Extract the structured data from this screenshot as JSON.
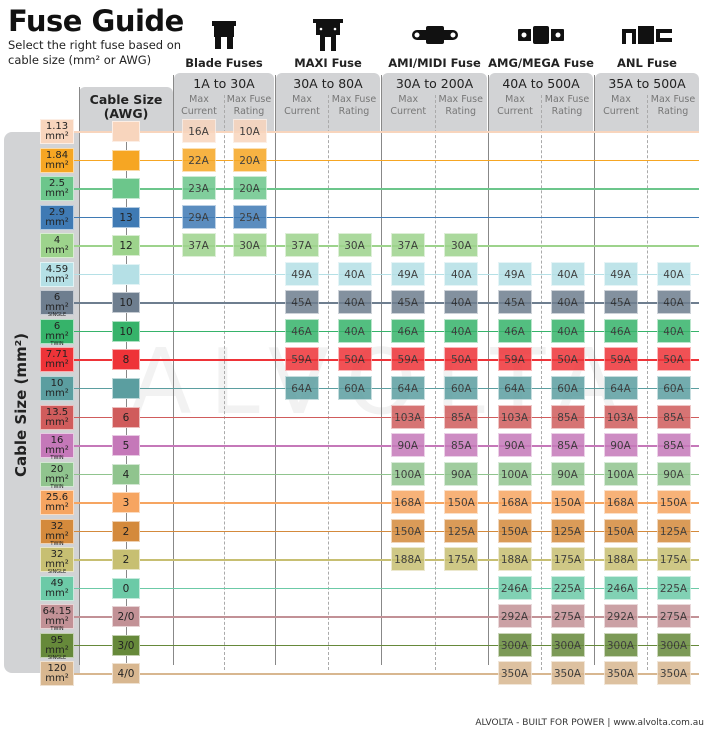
{
  "header": {
    "title": "Fuse Guide",
    "subtitle": "Select the right fuse based on cable size (mm² or AWG)"
  },
  "axis": {
    "cable_size_mm": "Cable Size (mm²)",
    "cable_size_awg": "Cable Size (AWG)"
  },
  "sub_headers": {
    "current": "Max Current",
    "rating": "Max Fuse Rating"
  },
  "fuse_types": [
    {
      "name": "Blade Fuses",
      "range": "1A to 30A",
      "icon": "blade-fuse-icon"
    },
    {
      "name": "MAXI Fuse",
      "range": "30A to 80A",
      "icon": "maxi-fuse-icon"
    },
    {
      "name": "AMI/MIDI Fuse",
      "range": "30A to 200A",
      "icon": "midi-fuse-icon"
    },
    {
      "name": "AMG/MEGA Fuse",
      "range": "40A to 500A",
      "icon": "mega-fuse-icon"
    },
    {
      "name": "ANL Fuse",
      "range": "35A to 500A",
      "icon": "anl-fuse-icon"
    }
  ],
  "rows": [
    {
      "size": "1.13",
      "unit": "mm²",
      "note": "",
      "awg": "",
      "color": "#f8d5bd",
      "values": [
        "16A",
        "10A",
        null,
        null,
        null,
        null,
        null,
        null,
        null,
        null
      ]
    },
    {
      "size": "1.84",
      "unit": "mm²",
      "note": "",
      "awg": "",
      "color": "#f6a623",
      "values": [
        "22A",
        "20A",
        null,
        null,
        null,
        null,
        null,
        null,
        null,
        null
      ]
    },
    {
      "size": "2.5",
      "unit": "mm²",
      "note": "",
      "awg": "",
      "color": "#6cc68b",
      "values": [
        "23A",
        "20A",
        null,
        null,
        null,
        null,
        null,
        null,
        null,
        null
      ]
    },
    {
      "size": "2.9",
      "unit": "mm²",
      "note": "",
      "awg": "13",
      "color": "#3f7ab4",
      "values": [
        "29A",
        "25A",
        null,
        null,
        null,
        null,
        null,
        null,
        null,
        null
      ]
    },
    {
      "size": "4",
      "unit": "mm²",
      "note": "",
      "awg": "12",
      "color": "#9dd38c",
      "values": [
        "37A",
        "30A",
        "37A",
        "30A",
        "37A",
        "30A",
        null,
        null,
        null,
        null
      ]
    },
    {
      "size": "4.59",
      "unit": "mm²",
      "note": "",
      "awg": "",
      "color": "#b5e0e6",
      "values": [
        null,
        null,
        "49A",
        "40A",
        "49A",
        "40A",
        "49A",
        "40A",
        "49A",
        "40A"
      ]
    },
    {
      "size": "6",
      "unit": "mm²",
      "note": "SINGLE",
      "awg": "10",
      "color": "#6e7e8f",
      "values": [
        null,
        null,
        "45A",
        "40A",
        "45A",
        "40A",
        "45A",
        "40A",
        "45A",
        "40A"
      ]
    },
    {
      "size": "6",
      "unit": "mm²",
      "note": "TWIN",
      "awg": "10",
      "color": "#36b36a",
      "values": [
        null,
        null,
        "46A",
        "40A",
        "46A",
        "40A",
        "46A",
        "40A",
        "46A",
        "40A"
      ]
    },
    {
      "size": "7.71",
      "unit": "mm²",
      "note": "",
      "awg": "8",
      "color": "#ee3338",
      "values": [
        null,
        null,
        "59A",
        "50A",
        "59A",
        "50A",
        "59A",
        "50A",
        "59A",
        "50A"
      ]
    },
    {
      "size": "10",
      "unit": "mm²",
      "note": "",
      "awg": "",
      "color": "#5b9ea0",
      "values": [
        null,
        null,
        "64A",
        "60A",
        "64A",
        "60A",
        "64A",
        "60A",
        "64A",
        "60A"
      ]
    },
    {
      "size": "13.5",
      "unit": "mm²",
      "note": "",
      "awg": "6",
      "color": "#d05c5c",
      "values": [
        null,
        null,
        null,
        null,
        "103A",
        "85A",
        "103A",
        "85A",
        "103A",
        "85A"
      ]
    },
    {
      "size": "16",
      "unit": "mm²",
      "note": "TWIN",
      "awg": "5",
      "color": "#c578b9",
      "values": [
        null,
        null,
        null,
        null,
        "90A",
        "85A",
        "90A",
        "85A",
        "90A",
        "85A"
      ]
    },
    {
      "size": "20",
      "unit": "mm²",
      "note": "TWIN",
      "awg": "4",
      "color": "#90c48e",
      "values": [
        null,
        null,
        null,
        null,
        "100A",
        "90A",
        "100A",
        "90A",
        "100A",
        "90A"
      ]
    },
    {
      "size": "25.6",
      "unit": "mm²",
      "note": "",
      "awg": "3",
      "color": "#f6a561",
      "values": [
        null,
        null,
        null,
        null,
        "168A",
        "150A",
        "168A",
        "150A",
        "168A",
        "150A"
      ]
    },
    {
      "size": "32",
      "unit": "mm²",
      "note": "TWIN",
      "awg": "2",
      "color": "#d48a3c",
      "values": [
        null,
        null,
        null,
        null,
        "150A",
        "125A",
        "150A",
        "125A",
        "150A",
        "125A"
      ]
    },
    {
      "size": "32",
      "unit": "mm²",
      "note": "SINGLE",
      "awg": "2",
      "color": "#c7bf72",
      "values": [
        null,
        null,
        null,
        null,
        "188A",
        "175A",
        "188A",
        "175A",
        "188A",
        "175A"
      ]
    },
    {
      "size": "49",
      "unit": "mm²",
      "note": "",
      "awg": "0",
      "color": "#6ccaa7",
      "values": [
        null,
        null,
        null,
        null,
        null,
        null,
        "246A",
        "225A",
        "246A",
        "225A"
      ]
    },
    {
      "size": "64.15",
      "unit": "mm²",
      "note": "TWIN",
      "awg": "2/0",
      "color": "#c29196",
      "values": [
        null,
        null,
        null,
        null,
        null,
        null,
        "292A",
        "275A",
        "292A",
        "275A"
      ]
    },
    {
      "size": "95",
      "unit": "mm²",
      "note": "SINGLE",
      "awg": "3/0",
      "color": "#66893a",
      "values": [
        null,
        null,
        null,
        null,
        null,
        null,
        "300A",
        "300A",
        "300A",
        "300A"
      ]
    },
    {
      "size": "120",
      "unit": "mm²",
      "note": "",
      "awg": "4/0",
      "color": "#d8b790",
      "values": [
        null,
        null,
        null,
        null,
        null,
        null,
        "350A",
        "350A",
        "350A",
        "350A"
      ]
    }
  ],
  "watermark": "ALVOLTA",
  "footer": "ALVOLTA - BUILT FOR POWER | www.alvolta.com.au"
}
